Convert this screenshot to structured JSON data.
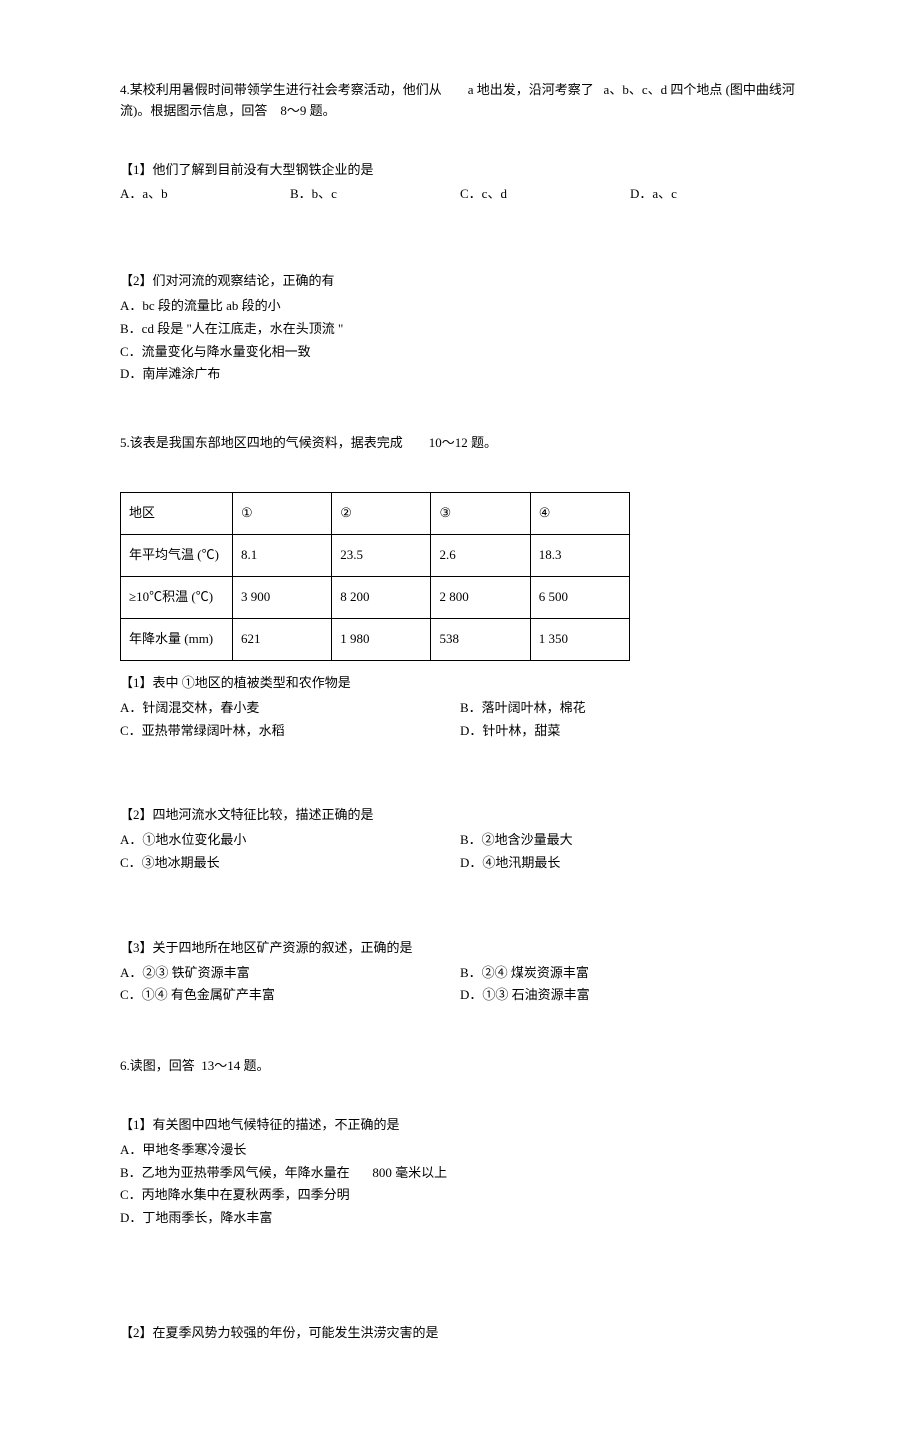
{
  "q4": {
    "text_pre": "4.某校利用暑假时间带领学生进行社会考察活动，他们从",
    "text_mid1": "a 地出发，沿河考察了",
    "text_mid2": "a、b、c、d 四个地点 (图中曲线河",
    "text_line2": "流)。根据图示信息，回答",
    "text_range": "8～9 题。",
    "sub1": {
      "prompt": "【1】他们了解到目前没有大型钢铁企业的是",
      "a": "A．a、b",
      "b": "B．b、c",
      "c": "C．c、d",
      "d": "D．a、c"
    },
    "sub2": {
      "prompt": "【2】们对河流的观察结论，正确的有",
      "a": "A．bc 段的流量比  ab 段的小",
      "b": "B．cd 段是 \"人在江底走，水在头顶流     \"",
      "c": "C．流量变化与降水量变化相一致",
      "d": "D．南岸滩涂广布"
    }
  },
  "q5": {
    "text_pre": "5.该表是我国东部地区四地的气候资料，据表完成",
    "text_range": "10～12 题。",
    "table": {
      "row1": [
        "地区",
        "①",
        "②",
        "③",
        "④"
      ],
      "row2": [
        "年平均气温 (℃)",
        "8.1",
        "23.5",
        "2.6",
        "18.3"
      ],
      "row3": [
        "≥10℃积温 (℃)",
        "3 900",
        "8 200",
        "2 800",
        "6 500"
      ],
      "row4": [
        "年降水量 (mm)",
        "621",
        "1 980",
        "538",
        "1 350"
      ]
    },
    "sub1": {
      "prompt": "【1】表中 ①地区的植被类型和农作物是",
      "a": "A．针阔混交林，春小麦",
      "b": "B．落叶阔叶林，棉花",
      "c": "C．亚热带常绿阔叶林，水稻",
      "d": "D．针叶林，甜菜"
    },
    "sub2": {
      "prompt": "【2】四地河流水文特征比较，描述正确的是",
      "a": "A．①地水位变化最小",
      "b": "B．②地含沙量最大",
      "c": "C．③地冰期最长",
      "d": "D．④地汛期最长"
    },
    "sub3": {
      "prompt": "【3】关于四地所在地区矿产资源的叙述，正确的是",
      "a": "A．②③ 铁矿资源丰富",
      "b": "B．②④ 煤炭资源丰富",
      "c": "C．①④ 有色金属矿产丰富",
      "d": "D．①③ 石油资源丰富"
    }
  },
  "q6": {
    "text_pre": "6.读图，回答",
    "text_range": "13～14 题。",
    "sub1": {
      "prompt": "【1】有关图中四地气候特征的描述，不正确的是",
      "a": "A．甲地冬季寒冷漫长",
      "b_pre": "B．乙地为亚热带季风气候，年降水量在",
      "b_post": "800 毫米以上",
      "c": "C．丙地降水集中在夏秋两季，四季分明",
      "d": "D．丁地雨季长，降水丰富"
    },
    "sub2": {
      "prompt": "【2】在夏季风势力较强的年份，可能发生洪涝灾害的是"
    }
  }
}
